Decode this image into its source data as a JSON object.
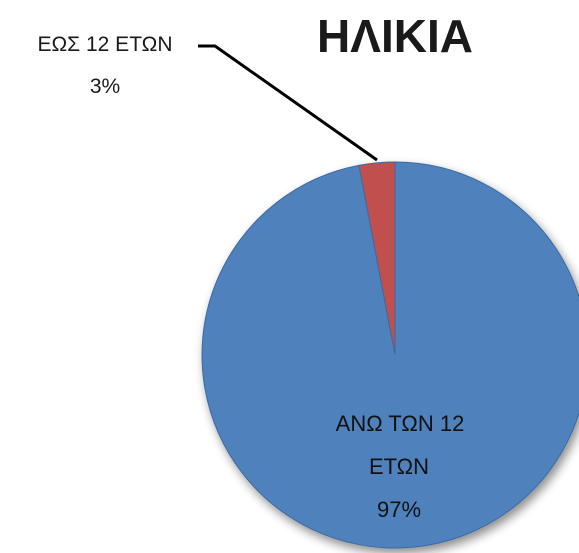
{
  "chart_data": {
    "type": "pie",
    "title": "ΗΛΙΚΙΑ",
    "categories": [
      "ΕΩΣ 12 ΕΤΩΝ",
      "ΑΝΩ ΤΩΝ 12 ΕΤΩΝ"
    ],
    "values": [
      3,
      97
    ],
    "unit": "%",
    "colors": [
      "#c0504d",
      "#4f81bd"
    ],
    "data_labels": [
      {
        "lines": [
          "ΕΩΣ 12 ΕΤΩΝ",
          "3%"
        ]
      },
      {
        "lines": [
          "ΑΝΩ ΤΩΝ 12",
          "ΕΤΩΝ",
          "97%"
        ]
      }
    ],
    "legend": "none"
  }
}
